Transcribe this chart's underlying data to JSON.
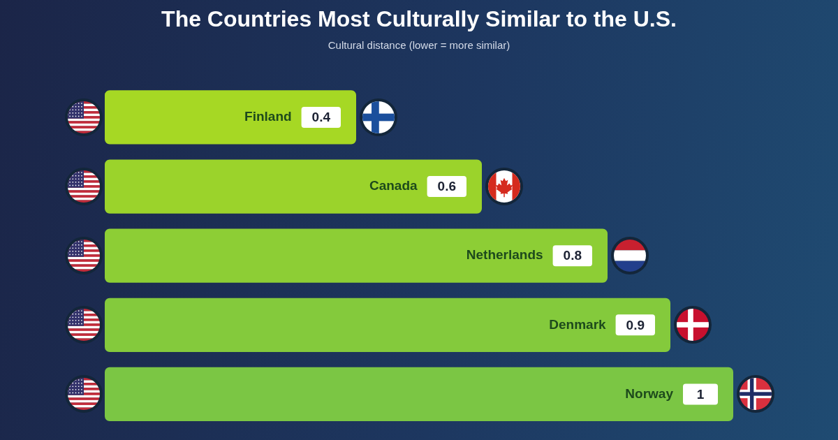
{
  "chart_data": {
    "type": "bar",
    "orientation": "horizontal",
    "title": "The Countries Most Culturally Similar to the U.S.",
    "subtitle": "Cultural distance (lower = more similar)",
    "categories": [
      "Finland",
      "Canada",
      "Netherlands",
      "Denmark",
      "Norway"
    ],
    "values": [
      0.4,
      0.6,
      0.8,
      0.9,
      1
    ],
    "colors": [
      "#a6d824",
      "#9bd32b",
      "#8dce35",
      "#84ca3c",
      "#7bc644"
    ],
    "data_labels": true,
    "tick_labels": "y"
  }
}
